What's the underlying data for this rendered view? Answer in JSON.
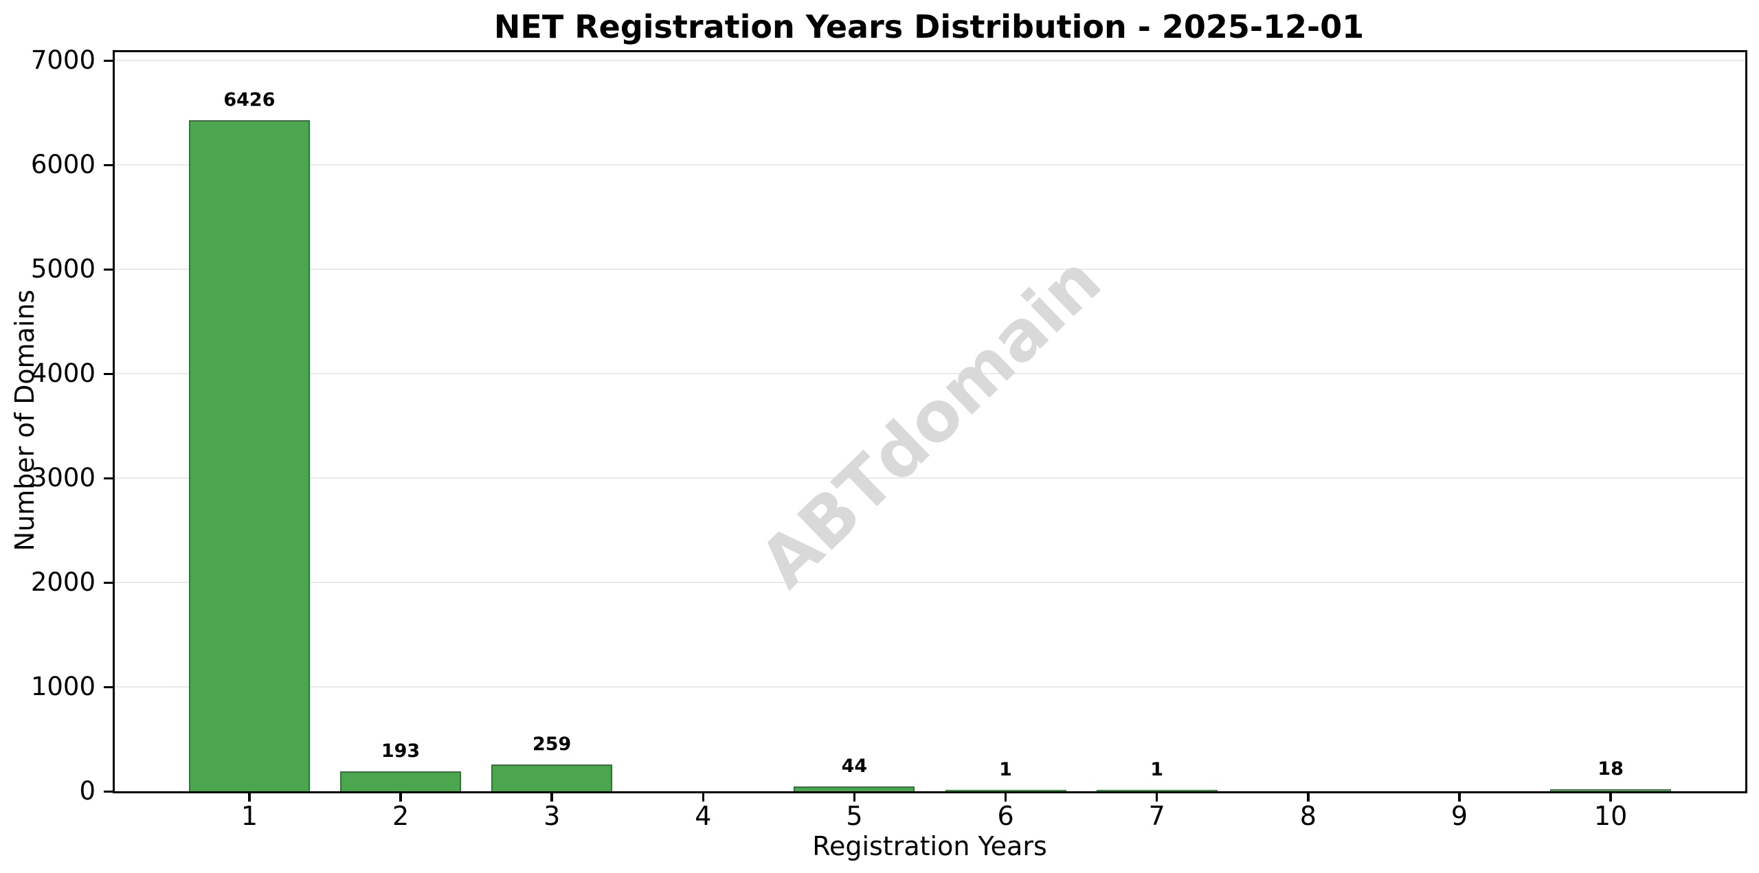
{
  "chart_data": {
    "type": "bar",
    "title": "NET Registration Years Distribution - 2025-12-01",
    "xlabel": "Registration Years",
    "ylabel": "Number of Domains",
    "categories": [
      "1",
      "2",
      "3",
      "4",
      "5",
      "6",
      "7",
      "8",
      "9",
      "10"
    ],
    "values": [
      6426,
      193,
      259,
      0,
      44,
      1,
      1,
      0,
      0,
      18
    ],
    "bar_labels": [
      "6426",
      "193",
      "259",
      "",
      "44",
      "1",
      "1",
      "",
      "",
      "18"
    ],
    "yticks": [
      0,
      1000,
      2000,
      3000,
      4000,
      5000,
      6000,
      7000
    ],
    "ylim": [
      0,
      7080
    ],
    "xlim": [
      0.11,
      10.89
    ],
    "bar_width_fraction": 0.8,
    "grid": "horizontal",
    "legend": "none",
    "watermark": {
      "text": "ABTdomain",
      "rotation_deg": -44,
      "position": "center"
    },
    "colors": {
      "bar_fill": "#4CA64F",
      "bar_edge": "#257C29",
      "gridline": "#e9e9e9",
      "watermark": "#d9d9d9",
      "text": "#000000",
      "background": "#ffffff"
    }
  }
}
